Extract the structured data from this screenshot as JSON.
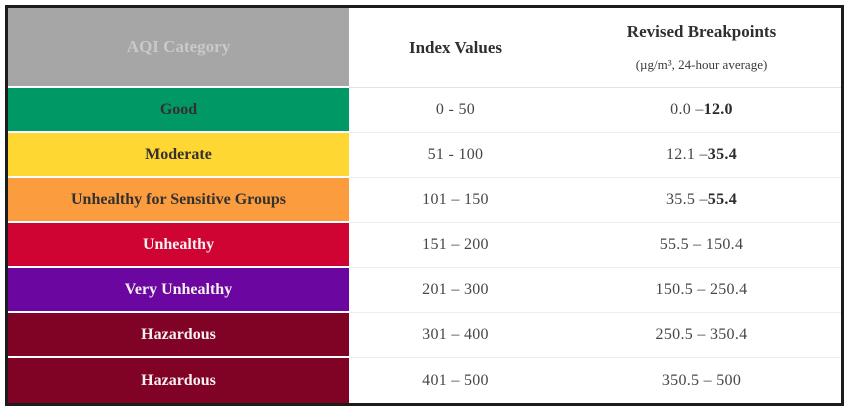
{
  "table": {
    "header": {
      "col1": "AQI Category",
      "col2": "Index Values",
      "col3_line1": "Revised Breakpoints",
      "col3_line2": "(µg/m³, 24-hour average)"
    },
    "rows": [
      {
        "category": "Good",
        "index": "0 - 50",
        "bp_pre": "0.0 – ",
        "bp_bold": "12.0",
        "bg": "#009966",
        "fg": "#33302e"
      },
      {
        "category": "Moderate",
        "index": "51 - 100",
        "bp_pre": "12.1 – ",
        "bp_bold": "35.4",
        "bg": "#ffd733",
        "fg": "#33302e"
      },
      {
        "category": "Unhealthy for Sensitive Groups",
        "index": "101 – 150",
        "bp_pre": "35.5 – ",
        "bp_bold": "55.4",
        "bg": "#fb9d3f",
        "fg": "#33302e"
      },
      {
        "category": "Unhealthy",
        "index": "151 – 200",
        "bp_pre": "55.5 – 150.4",
        "bp_bold": "",
        "bg": "#cf0433",
        "fg": "#f7f1f1"
      },
      {
        "category": "Very Unhealthy",
        "index": "201 – 300",
        "bp_pre": "150.5 – 250.4",
        "bp_bold": "",
        "bg": "#6b06a1",
        "fg": "#f7f1f1"
      },
      {
        "category": "Hazardous",
        "index": "301 – 400",
        "bp_pre": "250.5 – 350.4",
        "bp_bold": "",
        "bg": "#800225",
        "fg": "#f7f1f1"
      },
      {
        "category": "Hazardous",
        "index": "401 – 500",
        "bp_pre": "350.5 – 500",
        "bp_bold": "",
        "bg": "#800225",
        "fg": "#f7f1f1"
      }
    ],
    "colors": {
      "header_bg": "#a6a6a6",
      "header_fg": "#c9c9c9",
      "border": "#1c1c1c",
      "good": "#009966",
      "moderate": "#ffd733",
      "usg": "#fb9d3f",
      "unhealthy": "#cf0433",
      "very_unhealthy": "#6b06a1",
      "hazardous": "#800225"
    }
  },
  "chart_data": {
    "type": "table",
    "title": "AQI Categories with Revised PM2.5 Breakpoints",
    "columns": [
      "AQI Category",
      "Index Values",
      "Revised Breakpoints (µg/m³, 24-hour average)"
    ],
    "rows": [
      [
        "Good",
        "0 - 50",
        "0.0 – 12.0"
      ],
      [
        "Moderate",
        "51 - 100",
        "12.1 – 35.4"
      ],
      [
        "Unhealthy for Sensitive Groups",
        "101 – 150",
        "35.5 – 55.4"
      ],
      [
        "Unhealthy",
        "151 – 200",
        "55.5 – 150.4"
      ],
      [
        "Very Unhealthy",
        "201 – 300",
        "150.5 – 250.4"
      ],
      [
        "Hazardous",
        "301 – 400",
        "250.5 – 350.4"
      ],
      [
        "Hazardous",
        "401 – 500",
        "350.5 – 500"
      ]
    ],
    "row_colors": [
      "#009966",
      "#ffd733",
      "#fb9d3f",
      "#cf0433",
      "#6b06a1",
      "#800225",
      "#800225"
    ]
  }
}
